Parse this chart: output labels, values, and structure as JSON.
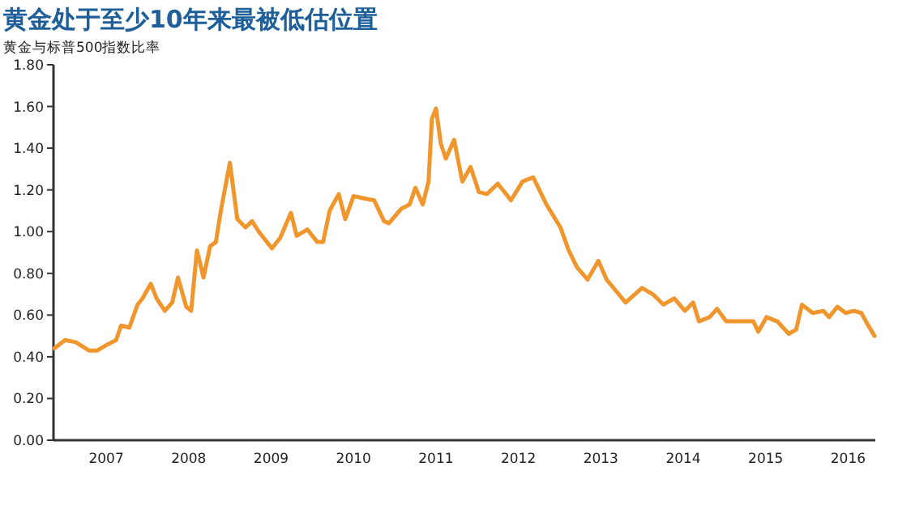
{
  "chart_data": {
    "type": "line",
    "title": "黄金处于至少10年来最被低估位置",
    "subtitle": "黄金与标普500指数比率",
    "x": [
      2006.37,
      2006.5,
      2006.63,
      2006.79,
      2006.89,
      2007.02,
      2007.12,
      2007.18,
      2007.28,
      2007.38,
      2007.44,
      2007.54,
      2007.61,
      2007.71,
      2007.8,
      2007.87,
      2007.97,
      2008.03,
      2008.1,
      2008.18,
      2008.26,
      2008.33,
      2008.39,
      2008.5,
      2008.59,
      2008.69,
      2008.77,
      2008.85,
      2009.01,
      2009.11,
      2009.24,
      2009.31,
      2009.44,
      2009.56,
      2009.63,
      2009.71,
      2009.82,
      2009.9,
      2010.0,
      2010.12,
      2010.25,
      2010.37,
      2010.43,
      2010.58,
      2010.68,
      2010.75,
      2010.84,
      2010.91,
      2010.95,
      2011.0,
      2011.06,
      2011.12,
      2011.22,
      2011.32,
      2011.42,
      2011.52,
      2011.62,
      2011.75,
      2011.91,
      2012.05,
      2012.18,
      2012.34,
      2012.51,
      2012.61,
      2012.71,
      2012.84,
      2012.97,
      2013.07,
      2013.3,
      2013.5,
      2013.63,
      2013.76,
      2013.89,
      2014.02,
      2014.12,
      2014.19,
      2014.32,
      2014.41,
      2014.52,
      2014.68,
      2014.85,
      2014.91,
      2015.01,
      2015.14,
      2015.28,
      2015.37,
      2015.44,
      2015.57,
      2015.7,
      2015.77,
      2015.87,
      2015.97,
      2016.07,
      2016.16,
      2016.23,
      2016.32
    ],
    "series": [
      {
        "color": "#f0962d",
        "values": [
          0.44,
          0.48,
          0.47,
          0.43,
          0.43,
          0.46,
          0.48,
          0.55,
          0.54,
          0.65,
          0.68,
          0.75,
          0.68,
          0.62,
          0.66,
          0.78,
          0.64,
          0.62,
          0.91,
          0.78,
          0.93,
          0.95,
          1.1,
          1.33,
          1.06,
          1.02,
          1.05,
          1.0,
          0.92,
          0.97,
          1.09,
          0.98,
          1.01,
          0.95,
          0.95,
          1.1,
          1.18,
          1.06,
          1.17,
          1.16,
          1.15,
          1.05,
          1.04,
          1.11,
          1.13,
          1.21,
          1.13,
          1.24,
          1.54,
          1.59,
          1.42,
          1.35,
          1.44,
          1.24,
          1.31,
          1.19,
          1.18,
          1.23,
          1.15,
          1.24,
          1.26,
          1.13,
          1.02,
          0.91,
          0.83,
          0.77,
          0.86,
          0.77,
          0.66,
          0.73,
          0.7,
          0.65,
          0.68,
          0.62,
          0.66,
          0.57,
          0.59,
          0.63,
          0.57,
          0.57,
          0.57,
          0.52,
          0.59,
          0.57,
          0.51,
          0.53,
          0.65,
          0.61,
          0.62,
          0.59,
          0.64,
          0.61,
          0.62,
          0.61,
          0.56,
          0.5
        ]
      }
    ],
    "xlim": [
      2006.36,
      2016.33
    ],
    "xticks": [
      2007,
      2008,
      2009,
      2010,
      2011,
      2012,
      2013,
      2014,
      2015,
      2016
    ],
    "ylim": [
      0,
      1.8
    ],
    "yticks": [
      {
        "value": 0,
        "label": "0.00"
      },
      {
        "value": 0.2,
        "label": "0.20"
      },
      {
        "value": 0.4,
        "label": "0.40"
      },
      {
        "value": 0.6,
        "label": "0.60"
      },
      {
        "value": 0.8,
        "label": "0.80"
      },
      {
        "value": 1.0,
        "label": "1.00"
      },
      {
        "value": 1.2,
        "label": "1.20"
      },
      {
        "value": 1.4,
        "label": "1.40"
      },
      {
        "value": 1.6,
        "label": "1.60"
      },
      {
        "value": 1.8,
        "label": "1.80"
      }
    ],
    "grid": false,
    "marker": "none",
    "line_style": "solid"
  }
}
